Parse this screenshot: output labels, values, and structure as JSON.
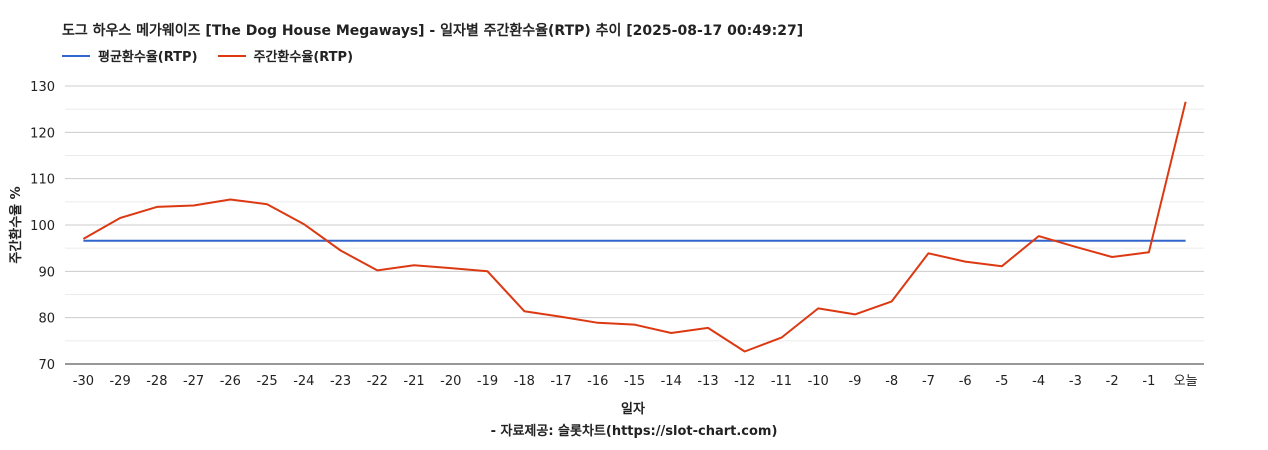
{
  "chart_data": {
    "type": "line",
    "title": "도그 하우스 메가웨이즈 [The Dog House Megaways] - 일자별 주간환수율(RTP) 추이 [2025-08-17 00:49:27]",
    "xlabel": "일자",
    "ylabel": "주간환수율 %",
    "caption": "- 자료제공: 슬롯차트(https://slot-chart.com)",
    "categories": [
      "-30",
      "-29",
      "-28",
      "-27",
      "-26",
      "-25",
      "-24",
      "-23",
      "-22",
      "-21",
      "-20",
      "-19",
      "-18",
      "-17",
      "-16",
      "-15",
      "-14",
      "-13",
      "-12",
      "-11",
      "-10",
      "-9",
      "-8",
      "-7",
      "-6",
      "-5",
      "-4",
      "-3",
      "-2",
      "-1",
      "오늘"
    ],
    "ylim": [
      70,
      130
    ],
    "yticks": [
      70,
      80,
      90,
      100,
      110,
      120,
      130
    ],
    "grid": true,
    "legend_position": "top-left",
    "series": [
      {
        "name": "평균환수율(RTP)",
        "color": "#3366cc",
        "values": [
          96.6,
          96.6,
          96.6,
          96.6,
          96.6,
          96.6,
          96.6,
          96.6,
          96.6,
          96.6,
          96.6,
          96.6,
          96.6,
          96.6,
          96.6,
          96.6,
          96.6,
          96.6,
          96.6,
          96.6,
          96.6,
          96.6,
          96.6,
          96.6,
          96.6,
          96.6,
          96.6,
          96.6,
          96.6,
          96.6,
          96.6
        ]
      },
      {
        "name": "주간환수율(RTP)",
        "color": "#dc3912",
        "values": [
          97.0,
          101.5,
          103.9,
          104.2,
          105.5,
          104.5,
          100.2,
          94.5,
          90.2,
          91.3,
          90.7,
          90.0,
          81.4,
          80.2,
          78.9,
          78.5,
          76.7,
          77.8,
          72.7,
          75.7,
          82.0,
          80.7,
          83.5,
          93.9,
          92.1,
          91.1,
          97.6,
          95.3,
          93.1,
          94.1,
          126.6
        ]
      }
    ]
  }
}
